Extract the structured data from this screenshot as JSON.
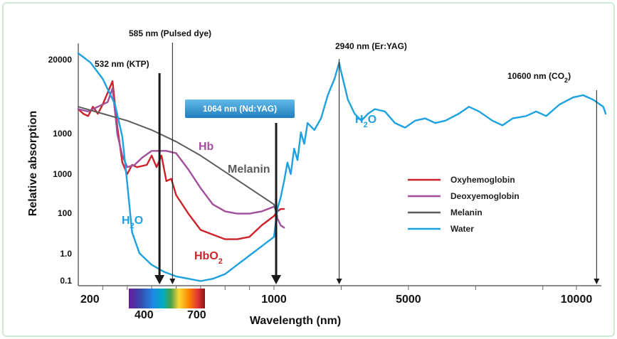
{
  "chart_data": {
    "type": "line",
    "title": "",
    "xlabel": "Wavelength (nm)",
    "ylabel": "Relative absorption",
    "x_scale": "piecewise (200-1000 linear, 1000-10000 linear)",
    "x_ticks": [
      "200",
      "1000",
      "5000",
      "10000"
    ],
    "visible_spectrum_ticks": [
      "400",
      "700"
    ],
    "y_ticks": [
      "20000",
      "1000",
      "1000",
      "100",
      "1.0",
      "0.1"
    ],
    "grid": false,
    "legend_position": "right",
    "series": [
      {
        "name": "Oxyhemoglobin",
        "color": "#cc2229",
        "points": [
          [
            200,
            0.76
          ],
          [
            220,
            0.74
          ],
          [
            240,
            0.73
          ],
          [
            260,
            0.77
          ],
          [
            280,
            0.74
          ],
          [
            300,
            0.78
          ],
          [
            340,
            0.88
          ],
          [
            360,
            0.68
          ],
          [
            380,
            0.53
          ],
          [
            400,
            0.48
          ],
          [
            420,
            0.52
          ],
          [
            440,
            0.51
          ],
          [
            480,
            0.52
          ],
          [
            500,
            0.56
          ],
          [
            520,
            0.51
          ],
          [
            540,
            0.56
          ],
          [
            560,
            0.45
          ],
          [
            580,
            0.46
          ],
          [
            600,
            0.39
          ],
          [
            650,
            0.31
          ],
          [
            700,
            0.24
          ],
          [
            750,
            0.22
          ],
          [
            800,
            0.2
          ],
          [
            850,
            0.2
          ],
          [
            900,
            0.21
          ],
          [
            950,
            0.26
          ],
          [
            1000,
            0.3
          ],
          [
            1100,
            0.32
          ],
          [
            1200,
            0.33
          ],
          [
            1300,
            0.33
          ]
        ]
      },
      {
        "name": "Deoxyemoglobin",
        "color": "#a24f9b",
        "points": [
          [
            200,
            0.76
          ],
          [
            240,
            0.75
          ],
          [
            280,
            0.77
          ],
          [
            320,
            0.79
          ],
          [
            340,
            0.85
          ],
          [
            360,
            0.65
          ],
          [
            380,
            0.56
          ],
          [
            400,
            0.51
          ],
          [
            430,
            0.52
          ],
          [
            460,
            0.55
          ],
          [
            500,
            0.58
          ],
          [
            520,
            0.58
          ],
          [
            560,
            0.58
          ],
          [
            600,
            0.57
          ],
          [
            650,
            0.5
          ],
          [
            700,
            0.42
          ],
          [
            750,
            0.35
          ],
          [
            800,
            0.32
          ],
          [
            850,
            0.31
          ],
          [
            900,
            0.31
          ],
          [
            950,
            0.32
          ],
          [
            1000,
            0.34
          ],
          [
            1050,
            0.33
          ],
          [
            1100,
            0.29
          ],
          [
            1200,
            0.26
          ],
          [
            1300,
            0.25
          ]
        ]
      },
      {
        "name": "Melanin",
        "color": "#5c5c5c",
        "points": [
          [
            200,
            0.77
          ],
          [
            300,
            0.74
          ],
          [
            400,
            0.71
          ],
          [
            500,
            0.67
          ],
          [
            600,
            0.62
          ],
          [
            700,
            0.56
          ],
          [
            800,
            0.49
          ],
          [
            900,
            0.42
          ],
          [
            1000,
            0.35
          ],
          [
            1050,
            0.32
          ],
          [
            1100,
            0.3
          ]
        ]
      },
      {
        "name": "Water",
        "color": "#1da1e0",
        "points": [
          [
            200,
            1.0
          ],
          [
            250,
            0.96
          ],
          [
            300,
            0.89
          ],
          [
            350,
            0.78
          ],
          [
            380,
            0.64
          ],
          [
            400,
            0.44
          ],
          [
            420,
            0.23
          ],
          [
            450,
            0.14
          ],
          [
            500,
            0.09
          ],
          [
            550,
            0.06
          ],
          [
            600,
            0.04
          ],
          [
            650,
            0.03
          ],
          [
            700,
            0.02
          ],
          [
            750,
            0.03
          ],
          [
            800,
            0.05
          ],
          [
            850,
            0.09
          ],
          [
            900,
            0.13
          ],
          [
            950,
            0.17
          ],
          [
            1000,
            0.21
          ],
          [
            1050,
            0.27
          ],
          [
            1100,
            0.33
          ],
          [
            1200,
            0.38
          ],
          [
            1300,
            0.45
          ],
          [
            1400,
            0.53
          ],
          [
            1500,
            0.48
          ],
          [
            1600,
            0.59
          ],
          [
            1700,
            0.54
          ],
          [
            1800,
            0.66
          ],
          [
            1900,
            0.61
          ],
          [
            2000,
            0.7
          ],
          [
            2200,
            0.67
          ],
          [
            2400,
            0.72
          ],
          [
            2600,
            0.82
          ],
          [
            2800,
            0.89
          ],
          [
            2940,
            0.96
          ],
          [
            3000,
            0.92
          ],
          [
            3200,
            0.8
          ],
          [
            3400,
            0.74
          ],
          [
            3600,
            0.71
          ],
          [
            3800,
            0.74
          ],
          [
            4000,
            0.76
          ],
          [
            4300,
            0.75
          ],
          [
            4600,
            0.7
          ],
          [
            4900,
            0.68
          ],
          [
            5200,
            0.71
          ],
          [
            5500,
            0.72
          ],
          [
            5800,
            0.7
          ],
          [
            6100,
            0.71
          ],
          [
            6500,
            0.74
          ],
          [
            6800,
            0.77
          ],
          [
            7100,
            0.75
          ],
          [
            7500,
            0.71
          ],
          [
            7800,
            0.69
          ],
          [
            8100,
            0.72
          ],
          [
            8500,
            0.73
          ],
          [
            8800,
            0.75
          ],
          [
            9100,
            0.73
          ],
          [
            9500,
            0.78
          ],
          [
            9900,
            0.81
          ],
          [
            10200,
            0.82
          ],
          [
            10500,
            0.8
          ],
          [
            10800,
            0.77
          ],
          [
            11000,
            0.74
          ]
        ]
      }
    ],
    "curve_labels": [
      {
        "text": "Hb",
        "series": "Deoxyemoglobin"
      },
      {
        "text": "Melanin",
        "series": "Melanin"
      },
      {
        "text": "HbO",
        "sub": "2",
        "series": "Oxyhemoglobin"
      },
      {
        "text": "H",
        "sub": "2",
        "tail": "O",
        "series": "Water"
      },
      {
        "text": "H",
        "sub": "2",
        "tail": "O",
        "series": "Water"
      }
    ],
    "laser_lines": [
      {
        "label": "532 nm (KTP)",
        "wavelength": 532,
        "style": "thick"
      },
      {
        "label": "585 nm (Pulsed dye)",
        "wavelength": 585,
        "style": "thin"
      },
      {
        "label": "1064 nm (Nd:YAG)",
        "wavelength": 1064,
        "style": "thick",
        "boxed": true
      },
      {
        "label": "2940 nm (Er:YAG)",
        "wavelength": 2940,
        "style": "thin"
      },
      {
        "label": "10600 nm (CO",
        "sub": "2",
        "tail": ")",
        "wavelength": 10600,
        "style": "thin"
      }
    ]
  }
}
